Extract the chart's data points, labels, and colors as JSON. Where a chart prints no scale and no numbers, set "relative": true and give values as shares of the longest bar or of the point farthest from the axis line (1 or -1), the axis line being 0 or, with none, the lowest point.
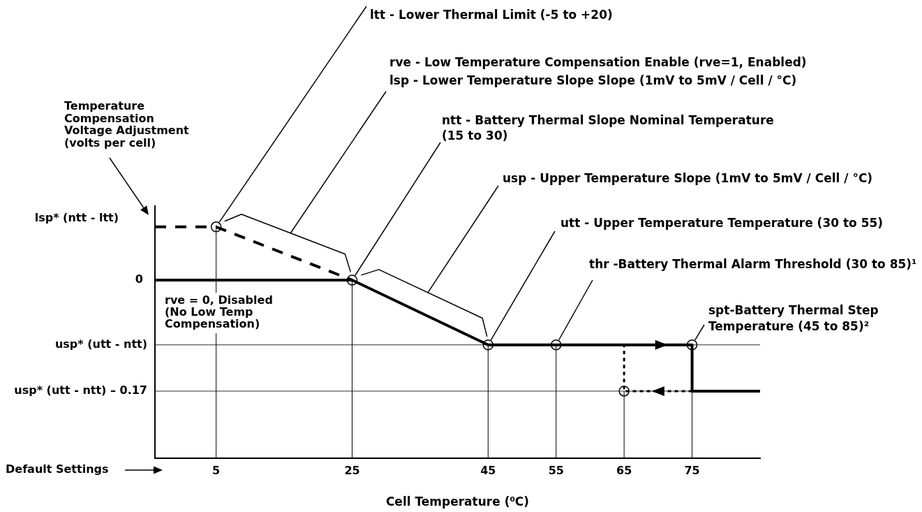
{
  "chart_data": {
    "type": "line",
    "xlabel": "Cell Temperature (⁰C)",
    "relative": true,
    "xlim": [
      -4,
      85
    ],
    "xticks": [
      5,
      25,
      45,
      55,
      65,
      75
    ],
    "series": [
      {
        "color": "#000000",
        "line_style": "solid",
        "x": [
          -4,
          25,
          45,
          75,
          75,
          85
        ],
        "values": [
          0.77,
          0.77,
          0.49,
          0.49,
          0.29,
          0.29
        ]
      },
      {
        "color": "#000000",
        "line_style": "dashed",
        "x": [
          -4,
          5,
          25
        ],
        "values": [
          1,
          1,
          0.77
        ]
      },
      {
        "color": "#000000",
        "line_style": "dotted",
        "x": [
          75,
          65,
          65
        ],
        "values": [
          0.29,
          0.29,
          0.49
        ]
      },
      {
        "type": "lollipop",
        "color": "#000000",
        "marker": "circle",
        "x": [
          5,
          25,
          45,
          55,
          65,
          75
        ],
        "values": [
          1,
          0.77,
          0.49,
          0.49,
          0.29,
          0.49
        ]
      }
    ],
    "ref_lines": [
      {
        "axis": "y",
        "value": 0.49,
        "label": "usp* (utt - ntt)",
        "color": "#333333"
      },
      {
        "axis": "y",
        "value": 0.29,
        "label": "usp* (utt - ntt) – 0.17",
        "color": "#333333"
      }
    ],
    "annotations": [
      {
        "text": "ltt - Lower Thermal Limit (-5 to +20)",
        "x": 5,
        "y": 1
      },
      "rve - Low Temperature Compensation Enable (rve=1, Enabled)",
      "lsp - Lower Temperature Slope Slope (1mV to 5mV / Cell / °C)",
      {
        "text": "ntt - Battery Thermal Slope Nominal Temperature (15 to 30)",
        "x": 25,
        "y": 0.77
      },
      "usp - Upper Temperature Slope (1mV to 5mV / Cell / °C)",
      {
        "text": "utt - Upper Temperature Temperature (30 to 55)",
        "x": 45,
        "y": 0.49
      },
      {
        "text": "thr -Battery Thermal Alarm Threshold (30 to 85)¹",
        "x": 55,
        "y": 0.49
      },
      {
        "text": "spt-Battery Thermal Step Temperature (45 to 85)²",
        "x": 75,
        "y": 0.49
      },
      "rve = 0, Disabled (No Low Temp Compensation)",
      "Default Settings",
      "lsp* (ntt - ltt)",
      {
        "text": "0",
        "x": -4,
        "y": 0.77
      },
      "Temperature Compensation Voltage Adjustment (volts per cell)"
    ]
  }
}
